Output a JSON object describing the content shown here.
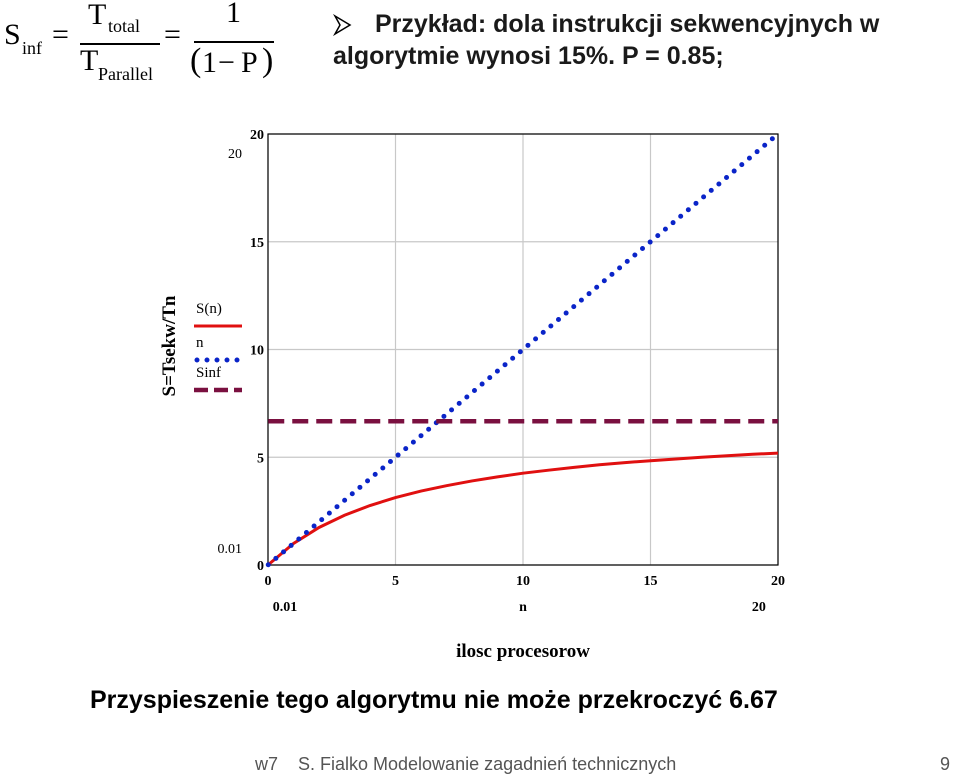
{
  "formula": {
    "lhs": "S",
    "lhs_sub": "inf",
    "eq1": "=",
    "num_main": "T",
    "num_sub": "total",
    "den_main": "T",
    "den_sub": "Parallel",
    "eq2": "=",
    "rhs_num": "1",
    "rhs_den_open": "(",
    "rhs_den_one": "1",
    "rhs_den_minus": "−",
    "rhs_den_p": "P",
    "rhs_den_close": ")"
  },
  "bullet": {
    "line1": "Przykład: dola instrukcji sekwencyjnych w",
    "line2": "algorytmie wynosi 15%. P = 0.85;"
  },
  "conclusion": "Przyspieszenie tego algorytmu nie może przekroczyć 6.67",
  "footer": {
    "left": "w7",
    "center": "S. Fialko Modelowanie zagadnień technicznych",
    "page": "9"
  },
  "colors": {
    "s_curve": "#e01010",
    "n_line": "#0a24c8",
    "sinf_line": "#7a1040",
    "grid": "#c8c8c8",
    "axis_text": "#000000"
  },
  "chart_data": {
    "type": "line",
    "title": "",
    "xlabel": "ilosc procesorow",
    "ylabel": "S=Tsekw/Tn",
    "xlim": [
      0,
      20
    ],
    "ylim": [
      0,
      20
    ],
    "x_ticks": [
      "0",
      "5",
      "10",
      "15",
      "20"
    ],
    "y_ticks": [
      "0",
      "5",
      "10",
      "15",
      "20"
    ],
    "x_range_labels": {
      "min": "0.01",
      "var": "n",
      "max": "20"
    },
    "y_range_labels": {
      "min": "0.01",
      "max": "20"
    },
    "grid": true,
    "legend": "left",
    "P": 0.85,
    "series": [
      {
        "name": "S(n)",
        "style": "solid",
        "color": "#e01010",
        "x": [
          0.01,
          1,
          2,
          3,
          4,
          5,
          6,
          7,
          8,
          9,
          10,
          11,
          12,
          13,
          14,
          15,
          16,
          17,
          18,
          19,
          20
        ],
        "values": [
          0.01,
          1.0,
          1.74,
          2.31,
          2.76,
          3.13,
          3.43,
          3.68,
          3.9,
          4.09,
          4.26,
          4.4,
          4.53,
          4.65,
          4.75,
          4.84,
          4.92,
          5.0,
          5.07,
          5.14,
          5.19
        ]
      },
      {
        "name": "n",
        "style": "dotted",
        "color": "#0a24c8",
        "x": [
          0.01,
          20
        ],
        "values": [
          0.01,
          20
        ]
      },
      {
        "name": "Sinf",
        "style": "dashed",
        "color": "#7a1040",
        "x": [
          0.01,
          20
        ],
        "values": [
          6.67,
          6.67
        ]
      }
    ]
  }
}
